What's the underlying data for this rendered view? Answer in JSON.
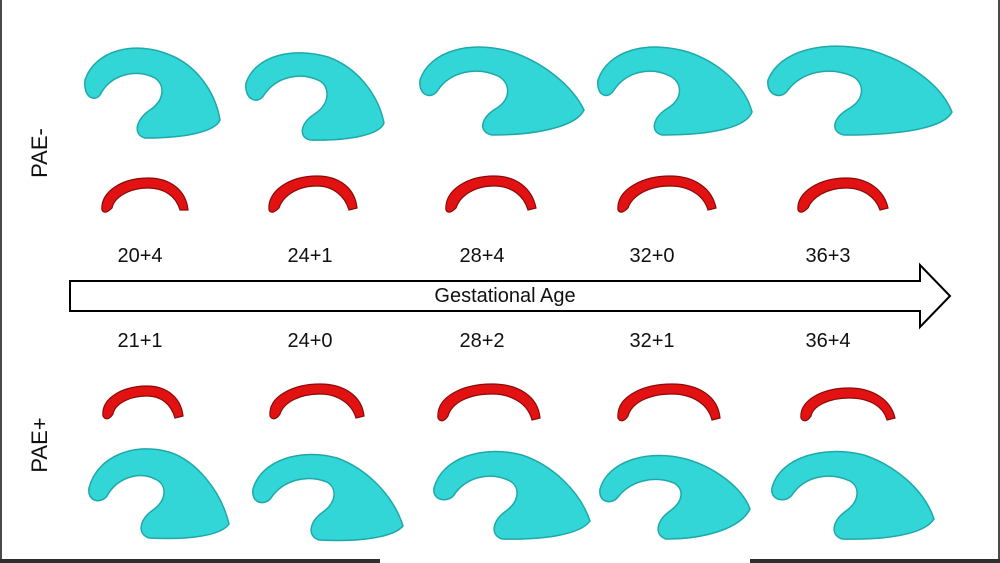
{
  "diagram": {
    "top_group": {
      "label": "PAE-",
      "ages": [
        "20+4",
        "24+1",
        "28+4",
        "32+0",
        "36+3"
      ]
    },
    "bottom_group": {
      "label": "PAE+",
      "ages": [
        "21+1",
        "24+0",
        "28+2",
        "32+1",
        "36+4"
      ]
    },
    "axis": {
      "label": "Gestational Age"
    },
    "colors": {
      "ventricle": "#33d6d6",
      "ventricle_shade": "#1fa8aa",
      "corpus_callosum": "#e31212",
      "corpus_callosum_shade": "#8a0a0a",
      "arrow_stroke": "#000000"
    }
  }
}
